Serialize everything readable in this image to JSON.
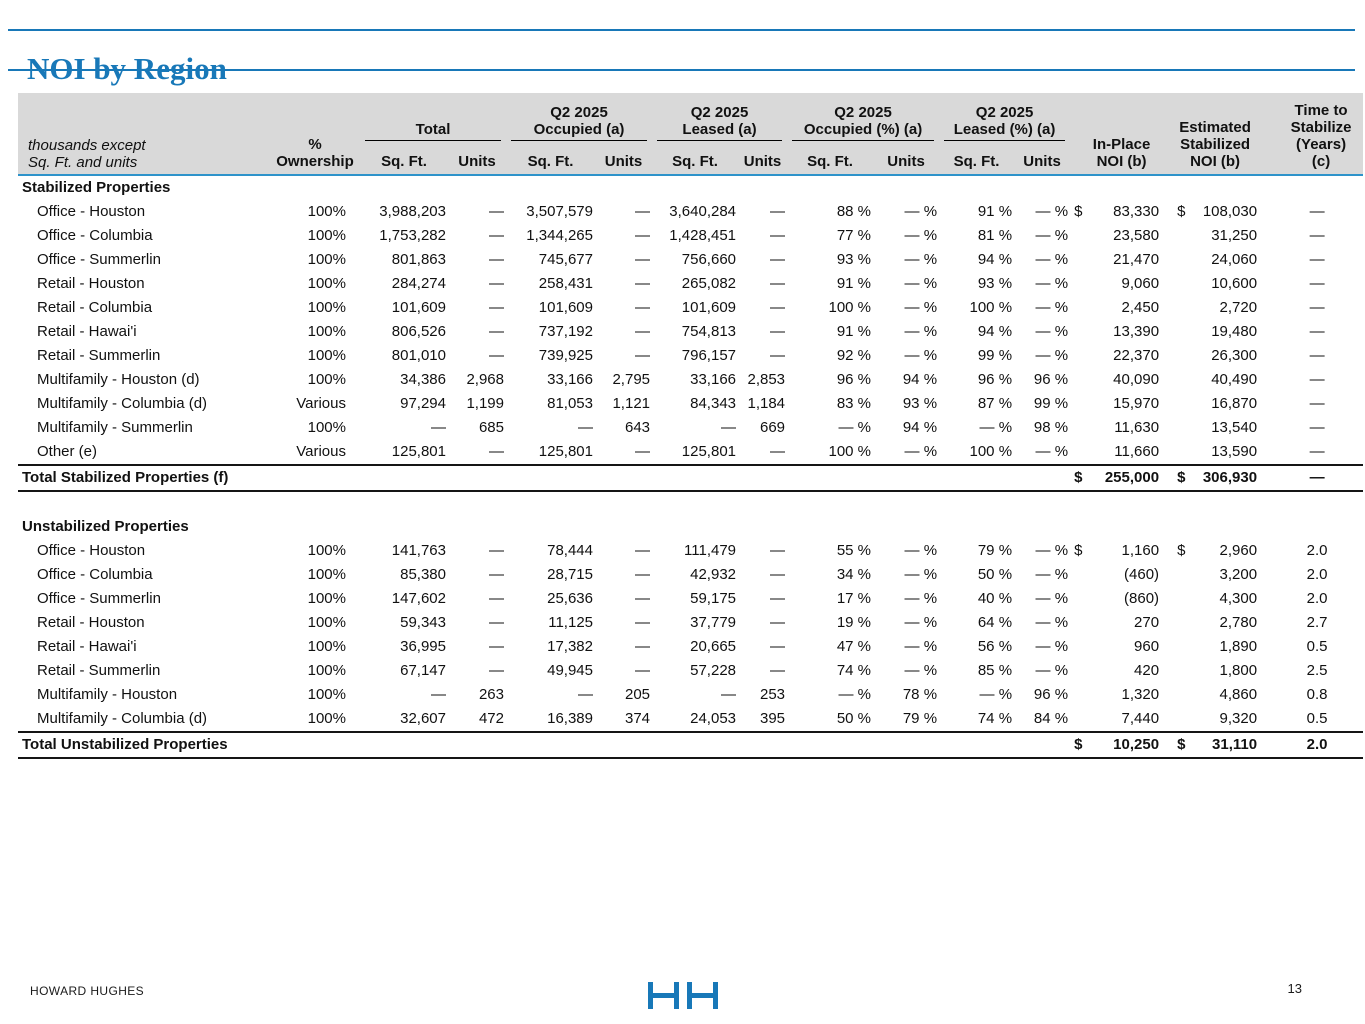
{
  "title": "NOI by Region",
  "colors": {
    "title_blue": "#1878B8",
    "header_rule_blue": "#2E93CA",
    "header_bg": "#D9D9D9"
  },
  "table": {
    "corner_note": "thousands except\nSq. Ft. and units",
    "ownership_header": "%\nOwnership",
    "groups": [
      {
        "title": "Total",
        "sub_sqft": "Sq. Ft.",
        "sub_units": "Units"
      },
      {
        "title": "Q2 2025\nOccupied (a)",
        "sub_sqft": "Sq. Ft.",
        "sub_units": "Units"
      },
      {
        "title": "Q2 2025\nLeased (a)",
        "sub_sqft": "Sq. Ft.",
        "sub_units": "Units"
      },
      {
        "title": "Q2 2025\nOccupied (%) (a)",
        "sub_sqft": "Sq. Ft.",
        "sub_units": "Units"
      },
      {
        "title": "Q2 2025\nLeased (%) (a)",
        "sub_sqft": "Sq. Ft.",
        "sub_units": "Units"
      }
    ],
    "inplace_header": "In-Place\nNOI (b)",
    "estimated_header": "Estimated\nStabilized\nNOI (b)",
    "time_header": "Time to\nStabilize\n(Years)\n(c)",
    "sections": [
      {
        "heading": "Stabilized Properties",
        "rows": [
          {
            "label": "Office - Houston",
            "cells": [
              "100%",
              "3,988,203",
              "—",
              "3,507,579",
              "—",
              "3,640,284",
              "—",
              "88 %",
              "— %",
              "91 %",
              "— %",
              "$",
              "83,330",
              "$",
              "108,030",
              "—"
            ]
          },
          {
            "label": "Office - Columbia",
            "cells": [
              "100%",
              "1,753,282",
              "—",
              "1,344,265",
              "—",
              "1,428,451",
              "—",
              "77 %",
              "— %",
              "81 %",
              "— %",
              "",
              "23,580",
              "",
              "31,250",
              "—"
            ]
          },
          {
            "label": "Office - Summerlin",
            "cells": [
              "100%",
              "801,863",
              "—",
              "745,677",
              "—",
              "756,660",
              "—",
              "93 %",
              "— %",
              "94 %",
              "— %",
              "",
              "21,470",
              "",
              "24,060",
              "—"
            ]
          },
          {
            "label": "Retail - Houston",
            "cells": [
              "100%",
              "284,274",
              "—",
              "258,431",
              "—",
              "265,082",
              "—",
              "91 %",
              "— %",
              "93 %",
              "— %",
              "",
              "9,060",
              "",
              "10,600",
              "—"
            ]
          },
          {
            "label": "Retail - Columbia",
            "cells": [
              "100%",
              "101,609",
              "—",
              "101,609",
              "—",
              "101,609",
              "—",
              "100 %",
              "— %",
              "100 %",
              "— %",
              "",
              "2,450",
              "",
              "2,720",
              "—"
            ]
          },
          {
            "label": "Retail - Hawai'i",
            "cells": [
              "100%",
              "806,526",
              "—",
              "737,192",
              "—",
              "754,813",
              "—",
              "91 %",
              "— %",
              "94 %",
              "— %",
              "",
              "13,390",
              "",
              "19,480",
              "—"
            ]
          },
          {
            "label": "Retail - Summerlin",
            "cells": [
              "100%",
              "801,010",
              "—",
              "739,925",
              "—",
              "796,157",
              "—",
              "92 %",
              "— %",
              "99 %",
              "— %",
              "",
              "22,370",
              "",
              "26,300",
              "—"
            ]
          },
          {
            "label": "Multifamily - Houston (d)",
            "cells": [
              "100%",
              "34,386",
              "2,968",
              "33,166",
              "2,795",
              "33,166",
              "2,853",
              "96 %",
              "94 %",
              "96 %",
              "96 %",
              "",
              "40,090",
              "",
              "40,490",
              "—"
            ]
          },
          {
            "label": "Multifamily - Columbia (d)",
            "cells": [
              "Various",
              "97,294",
              "1,199",
              "81,053",
              "1,121",
              "84,343",
              "1,184",
              "83 %",
              "93 %",
              "87 %",
              "99 %",
              "",
              "15,970",
              "",
              "16,870",
              "—"
            ]
          },
          {
            "label": "Multifamily - Summerlin",
            "cells": [
              "100%",
              "—",
              "685",
              "—",
              "643",
              "—",
              "669",
              "— %",
              "94 %",
              "— %",
              "98 %",
              "",
              "11,630",
              "",
              "13,540",
              "—"
            ]
          },
          {
            "label": "Other (e)",
            "cells": [
              "Various",
              "125,801",
              "—",
              "125,801",
              "—",
              "125,801",
              "—",
              "100 %",
              "— %",
              "100 %",
              "— %",
              "",
              "11,660",
              "",
              "13,590",
              "—"
            ]
          }
        ],
        "total": {
          "label": "Total Stabilized Properties (f)",
          "cells": [
            "$",
            "255,000",
            "$",
            "306,930",
            "—"
          ]
        }
      },
      {
        "heading": "Unstabilized Properties",
        "rows": [
          {
            "label": "Office - Houston",
            "cells": [
              "100%",
              "141,763",
              "—",
              "78,444",
              "—",
              "111,479",
              "—",
              "55 %",
              "— %",
              "79 %",
              "— %",
              "$",
              "1,160",
              "$",
              "2,960",
              "2.0"
            ]
          },
          {
            "label": "Office - Columbia",
            "cells": [
              "100%",
              "85,380",
              "—",
              "28,715",
              "—",
              "42,932",
              "—",
              "34 %",
              "— %",
              "50 %",
              "— %",
              "",
              "(460)",
              "",
              "3,200",
              "2.0"
            ]
          },
          {
            "label": "Office - Summerlin",
            "cells": [
              "100%",
              "147,602",
              "—",
              "25,636",
              "—",
              "59,175",
              "—",
              "17 %",
              "— %",
              "40 %",
              "— %",
              "",
              "(860)",
              "",
              "4,300",
              "2.0"
            ]
          },
          {
            "label": "Retail - Houston",
            "cells": [
              "100%",
              "59,343",
              "—",
              "11,125",
              "—",
              "37,779",
              "—",
              "19 %",
              "— %",
              "64 %",
              "— %",
              "",
              "270",
              "",
              "2,780",
              "2.7"
            ]
          },
          {
            "label": "Retail - Hawai'i",
            "cells": [
              "100%",
              "36,995",
              "—",
              "17,382",
              "—",
              "20,665",
              "—",
              "47 %",
              "— %",
              "56 %",
              "— %",
              "",
              "960",
              "",
              "1,890",
              "0.5"
            ]
          },
          {
            "label": "Retail - Summerlin",
            "cells": [
              "100%",
              "67,147",
              "—",
              "49,945",
              "—",
              "57,228",
              "—",
              "74 %",
              "— %",
              "85 %",
              "— %",
              "",
              "420",
              "",
              "1,800",
              "2.5"
            ]
          },
          {
            "label": "Multifamily - Houston",
            "cells": [
              "100%",
              "—",
              "263",
              "—",
              "205",
              "—",
              "253",
              "— %",
              "78 %",
              "— %",
              "96 %",
              "",
              "1,320",
              "",
              "4,860",
              "0.8"
            ]
          },
          {
            "label": "Multifamily - Columbia (d)",
            "cells": [
              "100%",
              "32,607",
              "472",
              "16,389",
              "374",
              "24,053",
              "395",
              "50 %",
              "79 %",
              "74 %",
              "84 %",
              "",
              "7,440",
              "",
              "9,320",
              "0.5"
            ]
          }
        ],
        "total": {
          "label": "Total Unstabilized Properties",
          "cells": [
            "$",
            "10,250",
            "$",
            "31,110",
            "2.0"
          ]
        }
      }
    ]
  },
  "footer": {
    "company": "HOWARD HUGHES",
    "page_number": "13",
    "logo_icon": "hh-monogram-icon"
  }
}
